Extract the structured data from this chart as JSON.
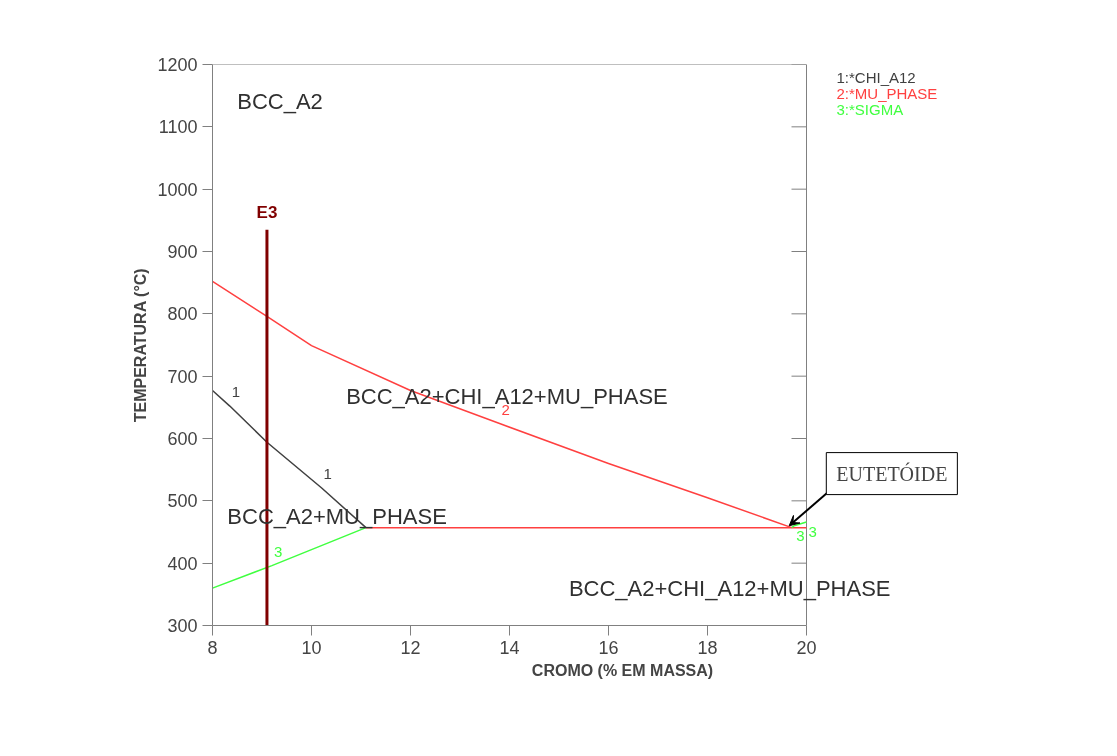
{
  "chart_data": {
    "type": "line",
    "xlabel": "CROMO (% EM MASSA)",
    "ylabel": "TEMPERATURA (°C)",
    "xlim": [
      8,
      20
    ],
    "xticks": [
      8,
      10,
      12,
      14,
      16,
      18,
      20
    ],
    "ylim": [
      300,
      1200
    ],
    "yticks": [
      300,
      400,
      500,
      600,
      700,
      800,
      900,
      1000,
      1100,
      1200
    ],
    "grid": false,
    "legend": "top right",
    "line_style": "solid",
    "marker": "none",
    "series": [
      {
        "name": "1:*CHI_A12",
        "color": "#404040",
        "x": [
          8,
          8.35,
          9.1,
          10.2,
          11.1
        ],
        "values": [
          677,
          652,
          594,
          521,
          457
        ]
      },
      {
        "name": "2:*MU_PHASE",
        "color": "#ff4040",
        "x": [
          8,
          9.1,
          10,
          12,
          13.8,
          16,
          18,
          19.7
        ],
        "values": [
          852,
          796,
          749,
          677,
          624,
          560,
          505,
          457
        ]
      },
      {
        "color": "#ff4040",
        "x": [
          11.1,
          19.7,
          20
        ],
        "values": [
          457,
          457,
          457
        ]
      },
      {
        "name": "3:*SIGMA",
        "color": "#40ff40",
        "x": [
          8,
          9.2,
          11.1
        ],
        "values": [
          360,
          396,
          457
        ]
      },
      {
        "color": "#40ff40",
        "x": [
          19.7,
          19.75,
          20
        ],
        "values": [
          457,
          460,
          466
        ]
      },
      {
        "name": "E3",
        "color": "#800000",
        "x": [
          9.1,
          9.1
        ],
        "values": [
          300,
          935
        ]
      }
    ],
    "annotations": [
      "BCC_A2",
      "BCC_A2+CHI_A12+MU_PHASE",
      "BCC_A2+MU_PHASE",
      "BCC_A2+CHI_A12+MU_PHASE",
      {
        "text": "1",
        "x": 8.35,
        "y": 652
      },
      {
        "text": "1",
        "x": 10.2,
        "y": 521
      },
      {
        "text": "2",
        "x": 13.8,
        "y": 624
      },
      {
        "text": "3",
        "x": 9.2,
        "y": 396
      },
      {
        "text": "3",
        "x": 19.75,
        "y": 460
      },
      {
        "text": "3",
        "x": 20,
        "y": 466
      },
      {
        "text": "EUTETÓIDE",
        "x": 19.65,
        "y": 460
      }
    ]
  }
}
